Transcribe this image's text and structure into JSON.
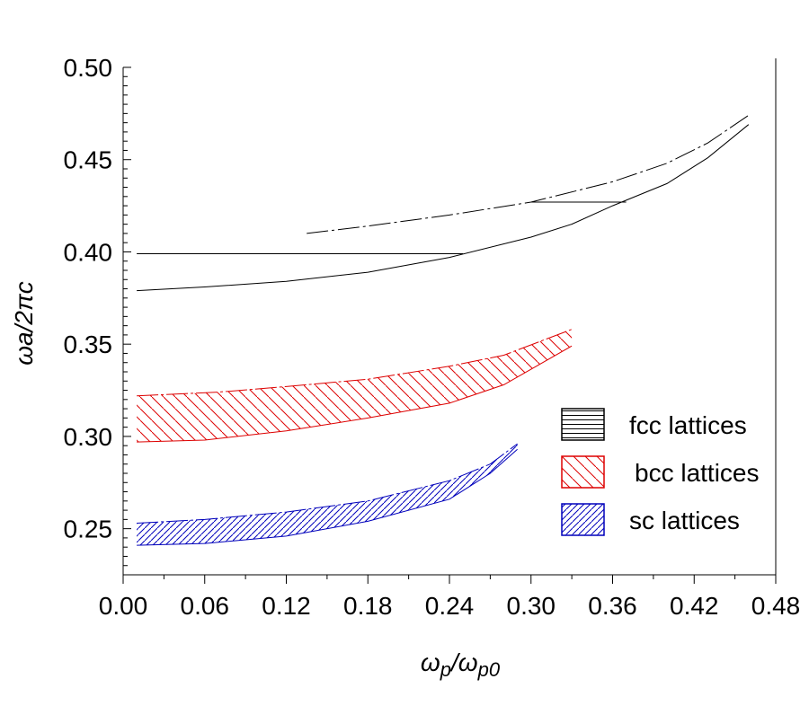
{
  "chart_data": {
    "type": "area",
    "title": "",
    "xlabel": {
      "main": "ω",
      "sub1": "p",
      "mid": "/ω",
      "sub2": "p0"
    },
    "ylabel": "ωa/2πc",
    "xlim": [
      0,
      0.48
    ],
    "ylim": [
      0.225,
      0.5
    ],
    "xticks": [
      "0.00",
      "0.06",
      "0.12",
      "0.18",
      "0.24",
      "0.30",
      "0.36",
      "0.42",
      "0.48"
    ],
    "yticks": [
      "0.25",
      "0.30",
      "0.35",
      "0.40",
      "0.45",
      "0.50"
    ],
    "grid": false,
    "legend_position": "right",
    "series": [
      {
        "name": "fcc lattices",
        "color": "#000000",
        "hatch": "horizontal",
        "lower": [
          [
            0.01,
            0.379
          ],
          [
            0.06,
            0.381
          ],
          [
            0.12,
            0.384
          ],
          [
            0.18,
            0.389
          ],
          [
            0.24,
            0.397
          ],
          [
            0.3,
            0.408
          ],
          [
            0.33,
            0.415
          ],
          [
            0.36,
            0.425
          ],
          [
            0.4,
            0.437
          ],
          [
            0.43,
            0.451
          ],
          [
            0.46,
            0.469
          ]
        ],
        "upper": [
          [
            0.135,
            0.41
          ],
          [
            0.18,
            0.414
          ],
          [
            0.24,
            0.42
          ],
          [
            0.3,
            0.427
          ],
          [
            0.36,
            0.438
          ],
          [
            0.4,
            0.448
          ],
          [
            0.43,
            0.459
          ],
          [
            0.46,
            0.474
          ]
        ],
        "hatch_lines": [
          [
            [
              0.01,
              0.399
            ],
            [
              0.25,
              0.399
            ]
          ],
          [
            [
              0.3,
              0.427
            ],
            [
              0.37,
              0.427
            ]
          ]
        ]
      },
      {
        "name": "bcc lattices",
        "color": "#dd0000",
        "hatch": "backslash",
        "lower": [
          [
            0.01,
            0.297
          ],
          [
            0.06,
            0.298
          ],
          [
            0.12,
            0.303
          ],
          [
            0.18,
            0.31
          ],
          [
            0.24,
            0.318
          ],
          [
            0.28,
            0.328
          ],
          [
            0.33,
            0.349
          ]
        ],
        "upper": [
          [
            0.01,
            0.322
          ],
          [
            0.07,
            0.324
          ],
          [
            0.12,
            0.327
          ],
          [
            0.18,
            0.331
          ],
          [
            0.24,
            0.338
          ],
          [
            0.28,
            0.344
          ],
          [
            0.33,
            0.358
          ]
        ]
      },
      {
        "name": "sc lattices",
        "color": "#0000bb",
        "hatch": "slash",
        "lower": [
          [
            0.01,
            0.241
          ],
          [
            0.06,
            0.242
          ],
          [
            0.12,
            0.246
          ],
          [
            0.18,
            0.254
          ],
          [
            0.24,
            0.266
          ],
          [
            0.27,
            0.28
          ],
          [
            0.29,
            0.293
          ]
        ],
        "upper": [
          [
            0.01,
            0.253
          ],
          [
            0.06,
            0.255
          ],
          [
            0.12,
            0.259
          ],
          [
            0.18,
            0.265
          ],
          [
            0.24,
            0.276
          ],
          [
            0.27,
            0.285
          ],
          [
            0.29,
            0.296
          ]
        ]
      }
    ]
  }
}
